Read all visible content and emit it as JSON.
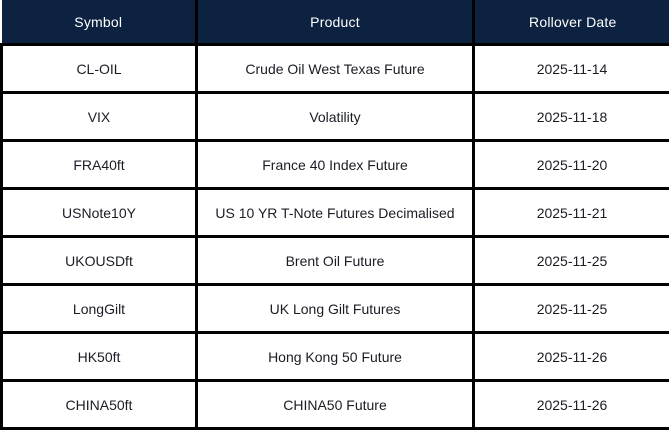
{
  "colors": {
    "header_background": "#0d2240",
    "header_text": "#ffffff",
    "grid_border": "#000000",
    "body_text": "#1a1c26",
    "row_background": "#ffffff"
  },
  "chart_data": {
    "type": "table",
    "title": "",
    "columns": [
      "Symbol",
      "Product",
      "Rollover Date"
    ],
    "rows": [
      [
        "CL-OIL",
        "Crude Oil West Texas Future",
        "2025-11-14"
      ],
      [
        "VIX",
        "Volatility",
        "2025-11-18"
      ],
      [
        "FRA40ft",
        "France 40 Index Future",
        "2025-11-20"
      ],
      [
        "USNote10Y",
        "US 10 YR T-Note Futures Decimalised",
        "2025-11-21"
      ],
      [
        "UKOUSDft",
        "Brent Oil Future",
        "2025-11-25"
      ],
      [
        "LongGilt",
        "UK Long Gilt Futures",
        "2025-11-25"
      ],
      [
        "HK50ft",
        "Hong Kong 50 Future",
        "2025-11-26"
      ],
      [
        "CHINA50ft",
        "CHINA50 Future",
        "2025-11-26"
      ]
    ]
  }
}
